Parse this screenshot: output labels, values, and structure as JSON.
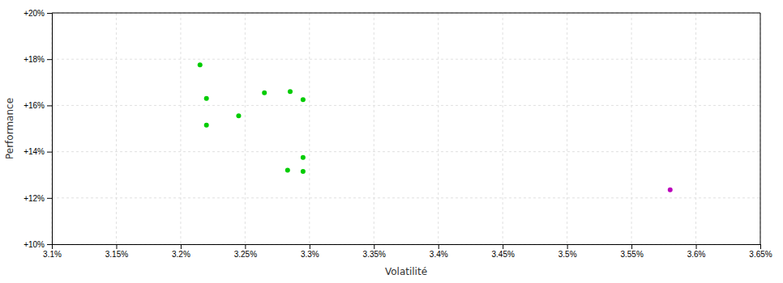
{
  "chart_data": {
    "type": "scatter",
    "xlabel": "Volatilité",
    "ylabel": "Performance",
    "xlim": [
      3.1,
      3.65
    ],
    "ylim": [
      10.0,
      20.0
    ],
    "xticks": [
      {
        "value": 3.1,
        "label": "3.1%"
      },
      {
        "value": 3.15,
        "label": "3.15%"
      },
      {
        "value": 3.2,
        "label": "3.2%"
      },
      {
        "value": 3.25,
        "label": "3.25%"
      },
      {
        "value": 3.3,
        "label": "3.3%"
      },
      {
        "value": 3.35,
        "label": "3.35%"
      },
      {
        "value": 3.4,
        "label": "3.4%"
      },
      {
        "value": 3.45,
        "label": "3.45%"
      },
      {
        "value": 3.5,
        "label": "3.5%"
      },
      {
        "value": 3.55,
        "label": "3.55%"
      },
      {
        "value": 3.6,
        "label": "3.6%"
      },
      {
        "value": 3.65,
        "label": "3.65%"
      }
    ],
    "yticks": [
      {
        "value": 10,
        "label": "+10%"
      },
      {
        "value": 12,
        "label": "+12%"
      },
      {
        "value": 14,
        "label": "+14%"
      },
      {
        "value": 16,
        "label": "+16%"
      },
      {
        "value": 18,
        "label": "+18%"
      },
      {
        "value": 20,
        "label": "+20%"
      }
    ],
    "grid": true,
    "series": [
      {
        "color": "#00cc00",
        "x": [
          3.215,
          3.22,
          3.22,
          3.245,
          3.265,
          3.285,
          3.295,
          3.295,
          3.283,
          3.295
        ],
        "values": [
          17.75,
          16.3,
          15.15,
          15.55,
          16.55,
          16.6,
          16.25,
          13.75,
          13.2,
          13.15
        ]
      },
      {
        "color": "#bb00bb",
        "x": [
          3.58
        ],
        "values": [
          12.35
        ]
      }
    ]
  }
}
